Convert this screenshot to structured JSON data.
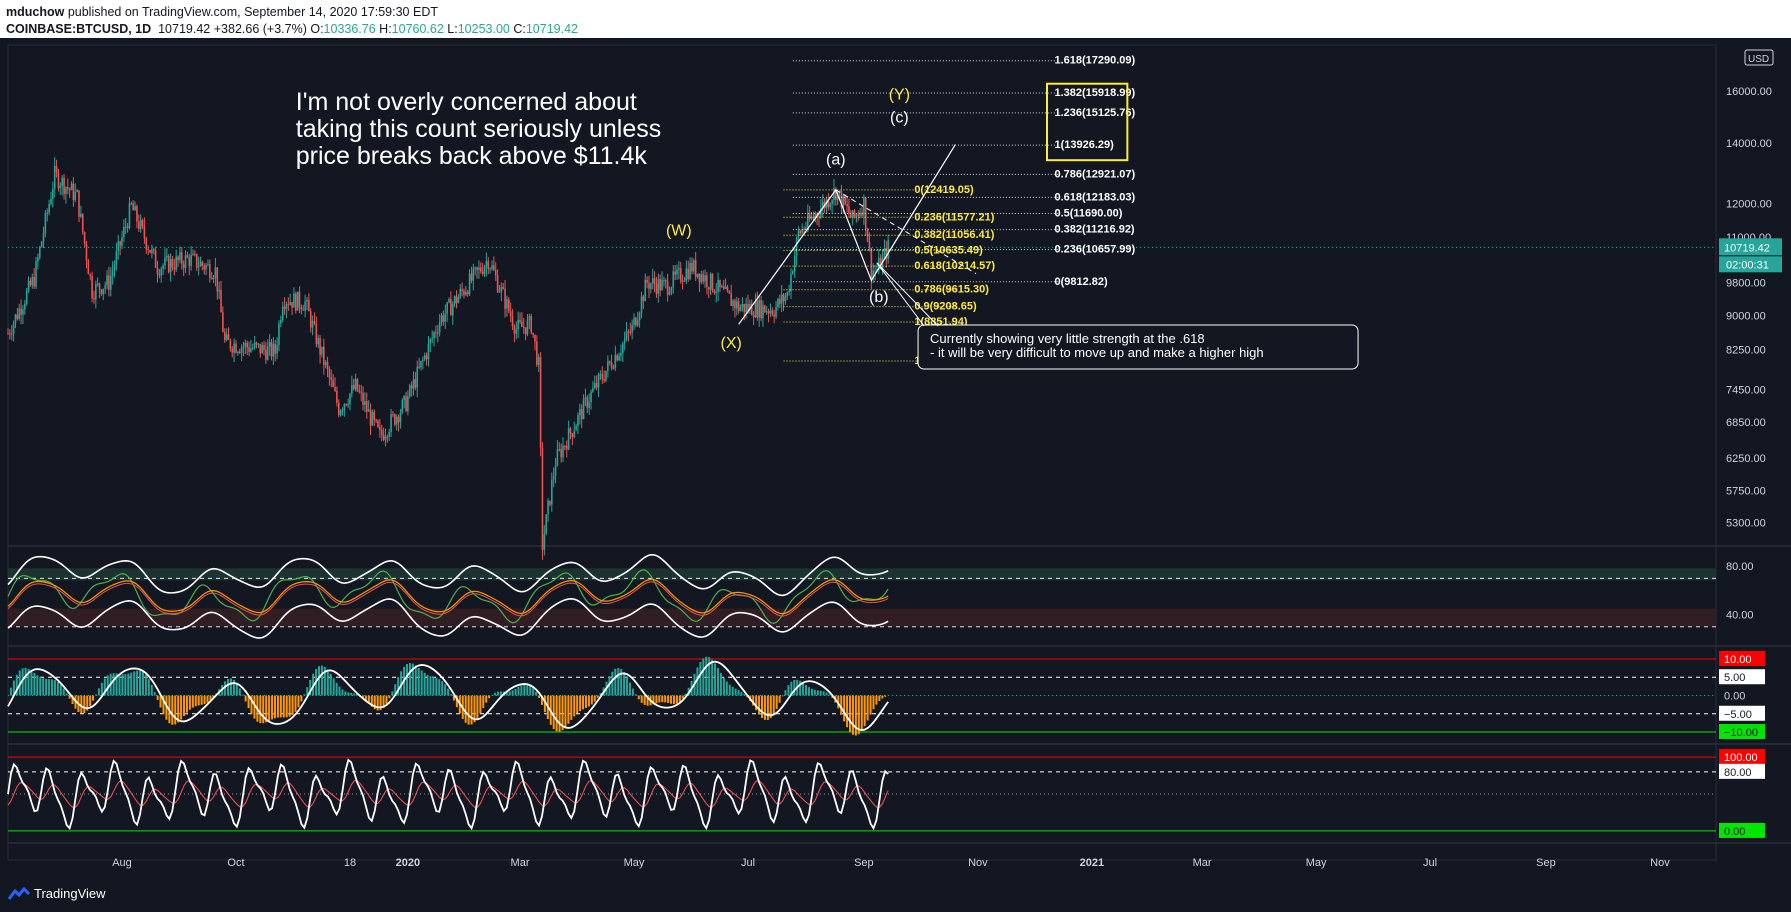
{
  "header": {
    "publisher": "mduchow",
    "published_text": "published on TradingView.com, September 14, 2020 17:59:30 EDT",
    "symbol": "COINBASE:BTCUSD, 1D",
    "last": "10719.42",
    "change": "+382.66 (+3.7%)",
    "o_label": "O:",
    "o_value": "10336.76",
    "h_label": "H:",
    "h_value": "10760.62",
    "l_label": "L:",
    "l_value": "10253.00",
    "c_label": "C:",
    "c_value": "10719.42"
  },
  "annotations": {
    "note_lines": [
      "I'm not overly concerned about",
      "taking this count seriously unless",
      "price breaks back above $11.4k"
    ],
    "callout_lines": [
      "Currently showing very little strength at the .618",
      " - it will be very difficult to move up and make a higher high"
    ],
    "wave_labels": {
      "W": "(W)",
      "X": "(X)",
      "Y": "(Y)",
      "a": "(a)",
      "b": "(b)",
      "c": "(c)"
    }
  },
  "price_axis": {
    "currency": "USD",
    "last_price_label": "10719.42",
    "countdown_label": "02:00:31"
  },
  "time_axis": [
    "Aug",
    "Oct",
    "18",
    "2020",
    "Mar",
    "May",
    "Jul",
    "Sep",
    "Nov",
    "2021",
    "Mar",
    "May",
    "Jul",
    "Sep",
    "Nov"
  ],
  "pane2_axis": [
    "80.00",
    "40.00"
  ],
  "pane3_axis": [
    "10.00",
    "5.00",
    "0.00",
    "−5.00",
    "−10.00"
  ],
  "pane4_axis": [
    "100.00",
    "80.00",
    "0.00"
  ],
  "footer": {
    "brand": "TradingView"
  },
  "colors": {
    "background": "#131722",
    "up_candle": "#26a69a",
    "down_candle": "#ef5350",
    "fib_yellow": "#ffeb3b",
    "text_white": "#ffffff",
    "red_level": "#ff0000",
    "green_level": "#00e600"
  },
  "chart_data": [
    {
      "type": "candlestick",
      "title": "COINBASE:BTCUSD, 1D",
      "scale": "log",
      "ylim": [
        5000,
        18000
      ],
      "price_ticks": [
        16000,
        14000,
        12000,
        11000,
        9800,
        9000,
        8250,
        7450,
        6850,
        6250,
        5750,
        5300
      ],
      "price_tick_labels": [
        "16000.00",
        "14000.00",
        "12000.00",
        "11000.00",
        "9800.00",
        "9000.00",
        "8250.00",
        "7450.00",
        "6850.00",
        "6250.00",
        "5750.00",
        "5300.00"
      ],
      "x_tick_labels": [
        "Aug",
        "Oct",
        "18",
        "2020",
        "Mar",
        "May",
        "Jul",
        "Sep",
        "Nov",
        "2021",
        "Mar",
        "May",
        "Jul",
        "Sep",
        "Nov"
      ],
      "x_tick_dates": [
        "2019-08-01",
        "2019-10-01",
        "2019-12-01",
        "2020-01-01",
        "2020-03-01",
        "2020-05-01",
        "2020-07-01",
        "2020-09-01",
        "2020-11-01",
        "2021-01-01",
        "2021-03-01",
        "2021-05-01",
        "2021-07-01",
        "2021-09-01",
        "2021-11-01"
      ],
      "x_range": [
        "2019-06-01",
        "2021-12-01"
      ],
      "close_path": [
        [
          "2019-06-01",
          8600
        ],
        [
          "2019-06-15",
          9900
        ],
        [
          "2019-06-26",
          12900
        ],
        [
          "2019-07-08",
          12200
        ],
        [
          "2019-07-16",
          9600
        ],
        [
          "2019-07-25",
          9800
        ],
        [
          "2019-08-06",
          11900
        ],
        [
          "2019-08-20",
          10200
        ],
        [
          "2019-09-06",
          10400
        ],
        [
          "2019-09-20",
          10100
        ],
        [
          "2019-09-25",
          8400
        ],
        [
          "2019-10-22",
          8200
        ],
        [
          "2019-10-26",
          9400
        ],
        [
          "2019-11-07",
          9300
        ],
        [
          "2019-11-25",
          7100
        ],
        [
          "2019-12-04",
          7500
        ],
        [
          "2019-12-17",
          6600
        ],
        [
          "2019-12-31",
          7200
        ],
        [
          "2020-01-18",
          8900
        ],
        [
          "2020-02-13",
          10400
        ],
        [
          "2020-02-28",
          8700
        ],
        [
          "2020-03-07",
          8800
        ],
        [
          "2020-03-11",
          7900
        ],
        [
          "2020-03-13",
          5000
        ],
        [
          "2020-03-20",
          6200
        ],
        [
          "2020-04-07",
          7300
        ],
        [
          "2020-04-30",
          8700
        ],
        [
          "2020-05-08",
          9800
        ],
        [
          "2020-05-18",
          9700
        ],
        [
          "2020-06-01",
          10200
        ],
        [
          "2020-06-26",
          9200
        ],
        [
          "2020-07-15",
          9150
        ],
        [
          "2020-07-22",
          9500
        ],
        [
          "2020-07-28",
          11100
        ],
        [
          "2020-08-17",
          12400
        ],
        [
          "2020-08-26",
          11500
        ],
        [
          "2020-09-01",
          12000
        ],
        [
          "2020-09-05",
          10100
        ],
        [
          "2020-09-08",
          10100
        ],
        [
          "2020-09-14",
          10719.42
        ]
      ],
      "last_price": 10719.42
    },
    {
      "type": "fibonacci",
      "name": "retracement of (a)",
      "levels": [
        {
          "ratio": "0",
          "price": 12419.05
        },
        {
          "ratio": "0.236",
          "price": 11577.21
        },
        {
          "ratio": "0.382",
          "price": 11056.41
        },
        {
          "ratio": "0.5",
          "price": 10635.49
        },
        {
          "ratio": "0.618",
          "price": 10214.57
        },
        {
          "ratio": "0.786",
          "price": 9615.3
        },
        {
          "ratio": "0.9",
          "price": 9208.65
        },
        {
          "ratio": "1",
          "price": 8851.94
        },
        {
          "ratio": "1.236",
          "price": 8010.1
        }
      ]
    },
    {
      "type": "fibonacci",
      "name": "extension",
      "levels": [
        {
          "ratio": "1.618",
          "price": 17290.09
        },
        {
          "ratio": "1.382",
          "price": 15918.99
        },
        {
          "ratio": "1.236",
          "price": 15125.76
        },
        {
          "ratio": "1",
          "price": 13926.29
        },
        {
          "ratio": "0.786",
          "price": 12921.07
        },
        {
          "ratio": "0.618",
          "price": 12183.03
        },
        {
          "ratio": "0.5",
          "price": 11690.0
        },
        {
          "ratio": "0.382",
          "price": 11216.92
        },
        {
          "ratio": "0.236",
          "price": 10657.99
        },
        {
          "ratio": "0",
          "price": 9812.82
        }
      ]
    },
    {
      "type": "line",
      "name": "oscillator pane (bands)",
      "ylim": [
        15,
        95
      ],
      "ticks": [
        80,
        40
      ],
      "levels": [
        70,
        30
      ],
      "end_date": "2020-09-14"
    },
    {
      "type": "bar",
      "name": "histogram oscillator pane",
      "ylim": [
        -13,
        13
      ],
      "ticks": [
        10,
        5,
        0,
        -5,
        -10
      ],
      "levels": [
        10,
        5,
        0,
        -5,
        -10
      ]
    },
    {
      "type": "line",
      "name": "stochastic pane",
      "ylim": [
        -15,
        115
      ],
      "ticks": [
        100,
        80,
        0
      ],
      "levels": [
        100,
        80,
        0
      ]
    }
  ]
}
